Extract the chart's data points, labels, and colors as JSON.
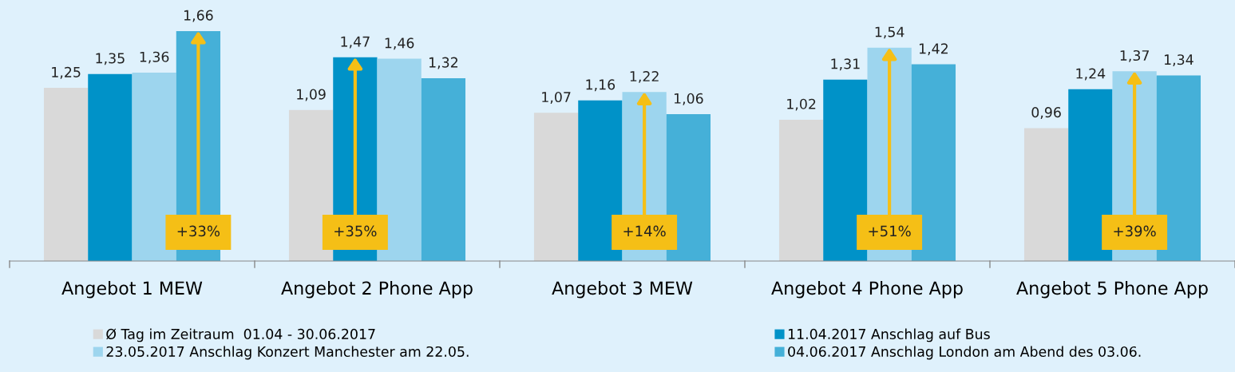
{
  "chart_data": {
    "type": "bar",
    "categories": [
      "Angebot 1 MEW",
      "Angebot 2 Phone App",
      "Angebot 3 MEW",
      "Angebot 4 Phone App",
      "Angebot 5 Phone App"
    ],
    "series": [
      {
        "name": "Ø Tag im Zeitraum  01.04 - 30.06.2017",
        "color": "#d9d9d9",
        "values": [
          1.25,
          1.09,
          1.07,
          1.02,
          0.96
        ],
        "value_labels": [
          "1,25",
          "1,09",
          "1,07",
          "1,02",
          "0,96"
        ]
      },
      {
        "name": "11.04.2017 Anschlag auf Bus",
        "color": "#0092c8",
        "values": [
          1.35,
          1.47,
          1.16,
          1.31,
          1.24
        ],
        "value_labels": [
          "1,35",
          "1,47",
          "1,16",
          "1,31",
          "1,24"
        ]
      },
      {
        "name": "23.05.2017 Anschlag Konzert Manchester am 22.05.",
        "color": "#9dd5ee",
        "values": [
          1.36,
          1.46,
          1.22,
          1.54,
          1.37
        ],
        "value_labels": [
          "1,36",
          "1,46",
          "1,22",
          "1,54",
          "1,37"
        ]
      },
      {
        "name": "04.06.2017 Anschlag London am Abend des 03.06.",
        "color": "#45b0d8",
        "values": [
          1.66,
          1.32,
          1.06,
          1.42,
          1.34
        ],
        "value_labels": [
          "1,66",
          "1,32",
          "1,06",
          "1,42",
          "1,34"
        ]
      }
    ],
    "grid": false,
    "legend": "bottom",
    "annotations": [
      "+33%",
      "+35%",
      "+14%",
      "+51%",
      "+39%"
    ]
  }
}
